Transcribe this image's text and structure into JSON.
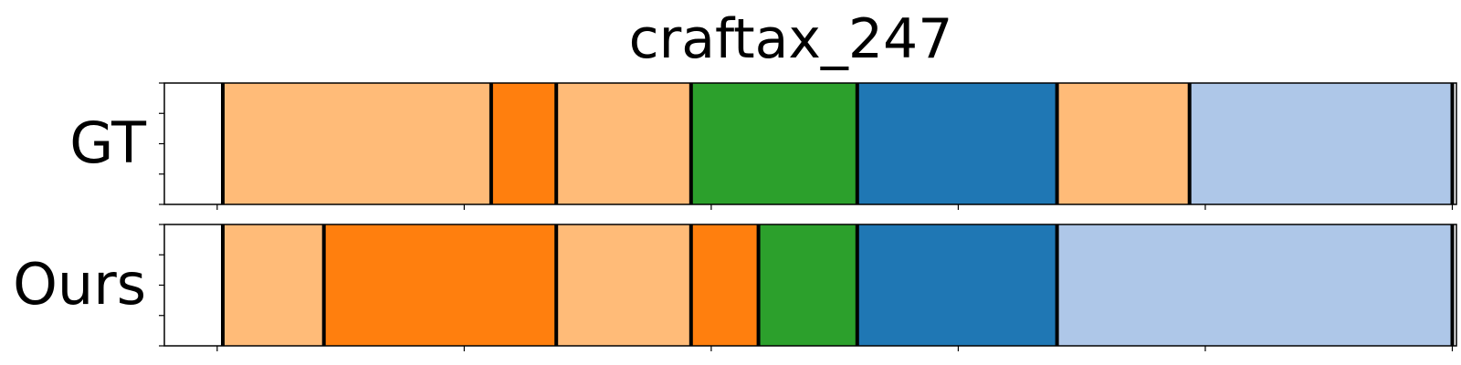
{
  "chart_data": {
    "type": "segmentation-timeline",
    "title": "craftax_247",
    "xlim": [
      0,
      110
    ],
    "x_ticks": [
      5,
      27,
      49,
      71,
      93,
      115
    ],
    "colors": {
      "light_orange": "#ffbb78",
      "orange": "#ff7f0e",
      "green": "#2ca02c",
      "blue": "#1f77b4",
      "light_blue": "#aec7e8"
    },
    "rows": [
      {
        "label": "GT",
        "segments": [
          {
            "start": 5.5,
            "end": 29.4,
            "color": "light_orange"
          },
          {
            "start": 29.4,
            "end": 35.2,
            "color": "orange"
          },
          {
            "start": 35.2,
            "end": 47.2,
            "color": "light_orange"
          },
          {
            "start": 47.2,
            "end": 62.0,
            "color": "green"
          },
          {
            "start": 62.0,
            "end": 79.8,
            "color": "blue"
          },
          {
            "start": 79.8,
            "end": 91.6,
            "color": "light_orange"
          },
          {
            "start": 91.6,
            "end": 115.0,
            "color": "light_blue"
          }
        ]
      },
      {
        "label": "Ours",
        "segments": [
          {
            "start": 5.5,
            "end": 14.5,
            "color": "light_orange"
          },
          {
            "start": 14.5,
            "end": 35.2,
            "color": "orange"
          },
          {
            "start": 35.2,
            "end": 47.2,
            "color": "light_orange"
          },
          {
            "start": 47.2,
            "end": 53.2,
            "color": "orange"
          },
          {
            "start": 53.2,
            "end": 62.0,
            "color": "green"
          },
          {
            "start": 62.0,
            "end": 79.8,
            "color": "blue"
          },
          {
            "start": 79.8,
            "end": 115.0,
            "color": "light_blue"
          }
        ]
      }
    ]
  }
}
